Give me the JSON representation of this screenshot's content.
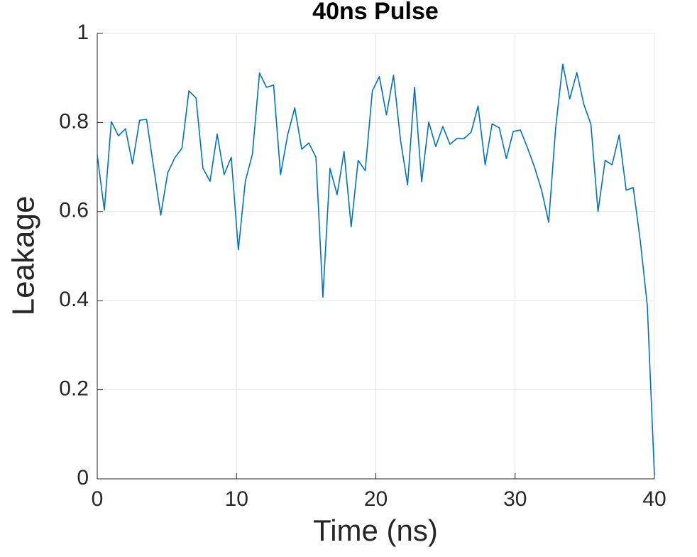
{
  "chart_data": {
    "type": "line",
    "title": "40ns Pulse",
    "x_label": "Time (ns)",
    "y_label": "Leakage",
    "x": [
      0,
      0.51,
      1.01,
      1.52,
      2.03,
      2.53,
      3.04,
      3.54,
      4.05,
      4.56,
      5.06,
      5.57,
      6.08,
      6.58,
      7.09,
      7.59,
      8.1,
      8.61,
      9.11,
      9.62,
      10.13,
      10.63,
      11.14,
      11.65,
      12.15,
      12.66,
      13.16,
      13.67,
      14.18,
      14.68,
      15.19,
      15.7,
      16.2,
      16.71,
      17.22,
      17.72,
      18.23,
      18.73,
      19.24,
      19.75,
      20.25,
      20.76,
      21.27,
      21.77,
      22.28,
      22.78,
      23.29,
      23.8,
      24.3,
      24.81,
      25.32,
      25.82,
      26.33,
      26.84,
      27.34,
      27.85,
      28.35,
      28.86,
      29.37,
      29.87,
      30.38,
      30.89,
      31.39,
      31.9,
      32.41,
      32.91,
      33.42,
      33.92,
      34.43,
      34.94,
      35.44,
      35.95,
      36.46,
      36.96,
      37.47,
      37.97,
      38.48,
      38.99,
      39.49,
      40
    ],
    "series": [
      {
        "color": "#0072bd",
        "values": [
          0.727,
          0.603,
          0.802,
          0.77,
          0.786,
          0.707,
          0.805,
          0.807,
          0.699,
          0.592,
          0.687,
          0.721,
          0.742,
          0.871,
          0.855,
          0.697,
          0.668,
          0.774,
          0.683,
          0.722,
          0.514,
          0.668,
          0.729,
          0.911,
          0.879,
          0.884,
          0.683,
          0.772,
          0.833,
          0.74,
          0.754,
          0.722,
          0.408,
          0.697,
          0.638,
          0.735,
          0.566,
          0.715,
          0.692,
          0.871,
          0.903,
          0.817,
          0.906,
          0.761,
          0.66,
          0.879,
          0.667,
          0.801,
          0.746,
          0.791,
          0.751,
          0.764,
          0.764,
          0.778,
          0.837,
          0.705,
          0.797,
          0.788,
          0.719,
          0.78,
          0.783,
          0.743,
          0.7,
          0.648,
          0.576,
          0.788,
          0.931,
          0.853,
          0.912,
          0.84,
          0.796,
          0.6,
          0.715,
          0.705,
          0.772,
          0.648,
          0.654,
          0.533,
          0.389,
          0.008
        ]
      }
    ],
    "xlim": [
      0,
      40
    ],
    "ylim": [
      0,
      1
    ],
    "xticks": [
      0,
      10,
      20,
      30,
      40
    ],
    "yticks": [
      0,
      0.2,
      0.4,
      0.6,
      0.8,
      1
    ],
    "grid": true
  }
}
